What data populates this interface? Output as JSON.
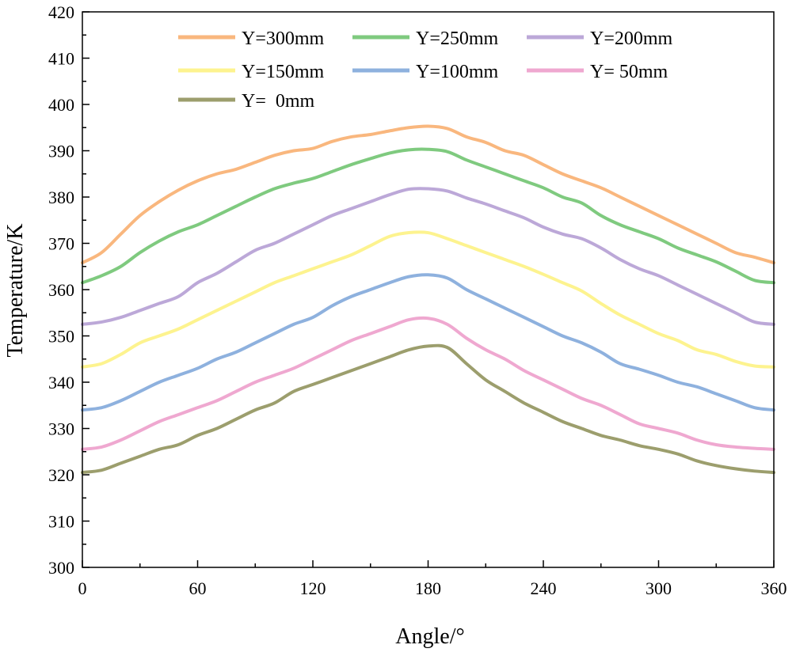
{
  "chart_data": {
    "type": "line",
    "title": "",
    "xlabel": "Angle/°",
    "ylabel": "Temperature/K",
    "xlim": [
      0,
      360
    ],
    "ylim": [
      300,
      420
    ],
    "xticks": [
      0,
      60,
      120,
      180,
      240,
      300,
      360
    ],
    "yticks": [
      300,
      310,
      320,
      330,
      340,
      350,
      360,
      370,
      380,
      390,
      400,
      410,
      420
    ],
    "grid": false,
    "legend_position": "top-left",
    "x": [
      0,
      10,
      20,
      30,
      40,
      50,
      60,
      70,
      80,
      90,
      100,
      110,
      120,
      130,
      140,
      150,
      160,
      170,
      180,
      190,
      200,
      210,
      220,
      230,
      240,
      250,
      260,
      270,
      280,
      290,
      300,
      310,
      320,
      330,
      340,
      350,
      360
    ],
    "series": [
      {
        "name": "Y=300mm",
        "color": "#F9B77E",
        "values": [
          365.8,
          368,
          372,
          376,
          379,
          381.5,
          383.5,
          385,
          386,
          387.5,
          389,
          390,
          390.5,
          392,
          393,
          393.5,
          394.3,
          395,
          395.3,
          394.8,
          393,
          391.8,
          390,
          389,
          387,
          385,
          383.5,
          382,
          380,
          378,
          376,
          374,
          372,
          370,
          368,
          367,
          365.8
        ]
      },
      {
        "name": "Y=250mm",
        "color": "#7FCA7F",
        "values": [
          361.5,
          363,
          365,
          368,
          370.5,
          372.5,
          374,
          376,
          378,
          380,
          381.8,
          383,
          384,
          385.5,
          387,
          388.3,
          389.5,
          390.2,
          390.3,
          389.8,
          388,
          386.5,
          385,
          383.5,
          382,
          380,
          378.7,
          376,
          374,
          372.5,
          371,
          369,
          367.5,
          366,
          364,
          362,
          361.5
        ]
      },
      {
        "name": "Y=200mm",
        "color": "#BCA8D8",
        "values": [
          352.5,
          353,
          354,
          355.5,
          357,
          358.5,
          361.5,
          363.5,
          366,
          368.5,
          370,
          372,
          374,
          376,
          377.5,
          379,
          380.5,
          381.7,
          381.8,
          381.3,
          379.8,
          378.5,
          377,
          375.5,
          373.5,
          372,
          371,
          369,
          366.5,
          364.5,
          363,
          361,
          359,
          357,
          355,
          353,
          352.5
        ]
      },
      {
        "name": "Y=150mm",
        "color": "#FDF38F",
        "values": [
          343.3,
          344,
          346,
          348.5,
          350,
          351.5,
          353.5,
          355.5,
          357.5,
          359.5,
          361.5,
          363,
          364.5,
          366,
          367.5,
          369.5,
          371.5,
          372.3,
          372.3,
          371,
          369.5,
          368,
          366.5,
          365,
          363.3,
          361.5,
          359.7,
          357,
          354.5,
          352.5,
          350.5,
          349,
          347,
          346,
          344.5,
          343.5,
          343.3
        ]
      },
      {
        "name": "Y=100mm",
        "color": "#8EB1DE",
        "values": [
          334,
          334.5,
          336,
          338,
          340,
          341.5,
          343,
          345,
          346.5,
          348.5,
          350.5,
          352.5,
          354,
          356.5,
          358.5,
          360,
          361.5,
          362.8,
          363.2,
          362.5,
          360,
          358,
          356,
          354,
          352,
          350,
          348.5,
          346.5,
          344,
          342.8,
          341.5,
          340,
          339,
          337.5,
          336,
          334.5,
          334
        ]
      },
      {
        "name": "Y= 50mm",
        "color": "#EFA8D0",
        "values": [
          325.5,
          326,
          327.5,
          329.5,
          331.5,
          333,
          334.5,
          336,
          338,
          340,
          341.5,
          343,
          345,
          347,
          349,
          350.5,
          352,
          353.5,
          353.8,
          352.5,
          349.5,
          347,
          345,
          342.5,
          340.5,
          338.5,
          336.5,
          335,
          333,
          331,
          330,
          329,
          327.5,
          326.5,
          326,
          325.7,
          325.5
        ]
      },
      {
        "name": "Y=  0mm",
        "color": "#9C9E6D",
        "values": [
          320.5,
          321,
          322.5,
          324,
          325.5,
          326.5,
          328.5,
          330,
          332,
          334,
          335.5,
          338,
          339.5,
          341,
          342.5,
          344,
          345.5,
          347,
          347.8,
          347.5,
          344,
          340.5,
          338,
          335.5,
          333.5,
          331.5,
          330,
          328.5,
          327.5,
          326.3,
          325.5,
          324.5,
          323,
          322,
          321.3,
          320.8,
          320.5
        ]
      }
    ]
  }
}
